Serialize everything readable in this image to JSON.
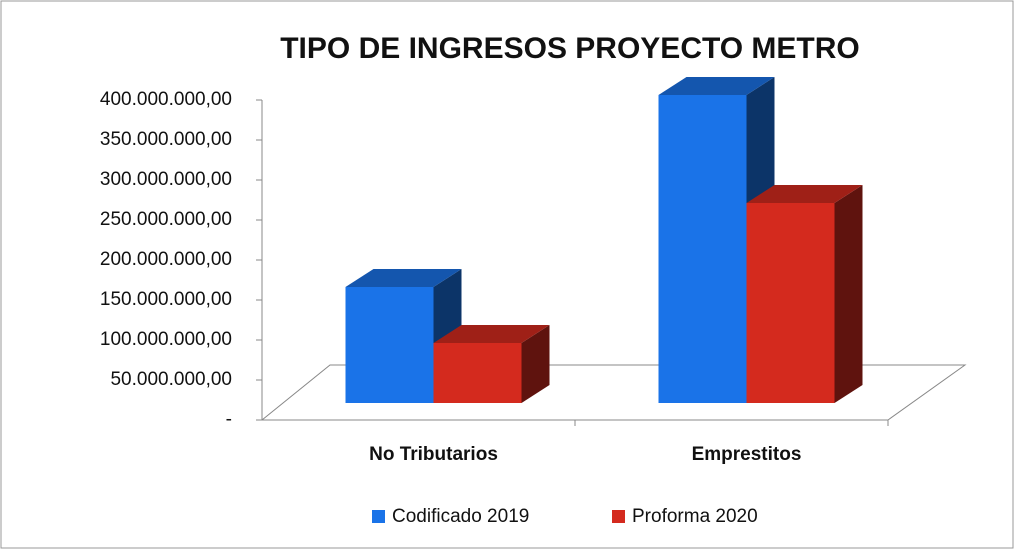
{
  "chart_data": {
    "type": "bar3d",
    "title": "TIPO DE INGRESOS PROYECTO METRO",
    "categories": [
      "No Tributarios",
      "Emprestitos"
    ],
    "series": [
      {
        "name": "Codificado 2019",
        "color": "#1a73e8",
        "values": [
          145000000,
          385000000
        ]
      },
      {
        "name": "Proforma 2020",
        "color": "#d42a1e",
        "values": [
          75000000,
          250000000
        ]
      }
    ],
    "ylim": [
      0,
      400000000
    ],
    "yticks": [
      {
        "value": 0,
        "label": "-"
      },
      {
        "value": 50000000,
        "label": "50.000.000,00"
      },
      {
        "value": 100000000,
        "label": "100.000.000,00"
      },
      {
        "value": 150000000,
        "label": "150.000.000,00"
      },
      {
        "value": 200000000,
        "label": "200.000.000,00"
      },
      {
        "value": 250000000,
        "label": "250.000.000,00"
      },
      {
        "value": 300000000,
        "label": "300.000.000,00"
      },
      {
        "value": 350000000,
        "label": "350.000.000,00"
      },
      {
        "value": 400000000,
        "label": "400.000.000,00"
      }
    ],
    "legend": "bottom"
  }
}
